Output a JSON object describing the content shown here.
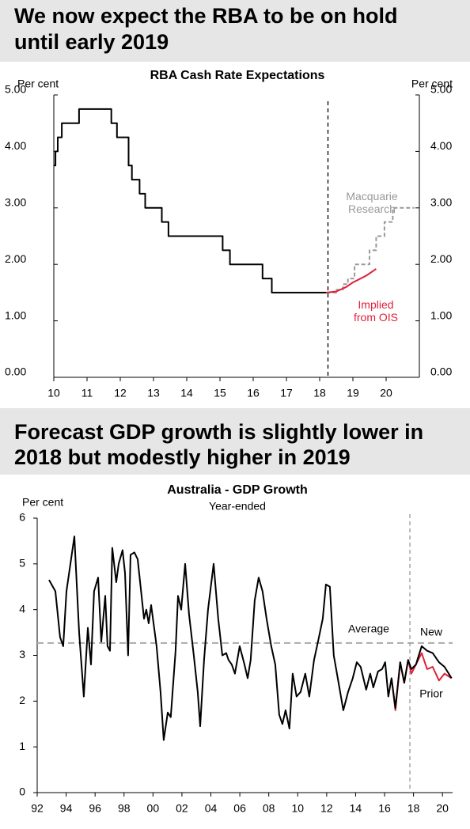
{
  "chart_data": [
    {
      "type": "line",
      "headline": [
        "We now expect the RBA to be on hold",
        "until early 2019"
      ],
      "title": "RBA Cash Rate Expectations",
      "ylabel": "Per cent",
      "y2label": "Per cent",
      "xlim": [
        10,
        21
      ],
      "xticks": [
        10,
        11,
        12,
        13,
        14,
        15,
        16,
        17,
        18,
        19,
        20
      ],
      "ylim": [
        0,
        5
      ],
      "yticks": [
        {
          "value": 0,
          "label": "0.00"
        },
        {
          "value": 1,
          "label": "1.00"
        },
        {
          "value": 2,
          "label": "2.00"
        },
        {
          "value": 3,
          "label": "3.00"
        },
        {
          "value": 4,
          "label": "4.00"
        },
        {
          "value": 5,
          "label": "5.00"
        }
      ],
      "y2lim": [
        0,
        5
      ],
      "y2ticks": [
        {
          "value": 0,
          "label": "0.00"
        },
        {
          "value": 1,
          "label": "1.00"
        },
        {
          "value": 2,
          "label": "2.00"
        },
        {
          "value": 3,
          "label": "3.00"
        },
        {
          "value": 4,
          "label": "4.00"
        },
        {
          "value": 5,
          "label": "5.00"
        }
      ],
      "forecast_start": 18.25,
      "series": [
        {
          "color": "#000000",
          "style": "solid",
          "x": [
            10.0,
            10.05,
            10.05,
            10.12,
            10.12,
            10.24,
            10.24,
            10.76,
            10.76,
            11.73,
            11.73,
            11.9,
            11.9,
            12.25,
            12.25,
            12.35,
            12.35,
            12.58,
            12.58,
            12.75,
            12.75,
            13.25,
            13.25,
            13.45,
            13.45,
            15.08,
            15.08,
            15.3,
            15.3,
            16.28,
            16.28,
            16.56,
            16.56,
            18.2
          ],
          "values": [
            3.75,
            3.75,
            4.0,
            4.0,
            4.25,
            4.25,
            4.5,
            4.5,
            4.75,
            4.75,
            4.5,
            4.5,
            4.25,
            4.25,
            3.75,
            3.75,
            3.5,
            3.5,
            3.25,
            3.25,
            3.0,
            3.0,
            2.75,
            2.75,
            2.5,
            2.5,
            2.25,
            2.25,
            2.0,
            2.0,
            1.75,
            1.75,
            1.5,
            1.5
          ]
        },
        {
          "name": "Macquarie Research",
          "color": "#999999",
          "style": "dashed",
          "x": [
            18.2,
            18.5,
            18.5,
            18.7,
            18.7,
            18.85,
            18.85,
            19.05,
            19.05,
            19.5,
            19.5,
            19.7,
            19.7,
            19.95,
            19.95,
            20.2,
            20.2,
            20.85
          ],
          "values": [
            1.5,
            1.5,
            1.55,
            1.55,
            1.65,
            1.65,
            1.75,
            1.75,
            2.0,
            2.0,
            2.25,
            2.25,
            2.5,
            2.5,
            2.75,
            2.75,
            3.0,
            3.0
          ]
        },
        {
          "name": "Implied from OIS",
          "color": "#e0203a",
          "style": "solid",
          "x": [
            18.2,
            18.5,
            18.8,
            19.0,
            19.2,
            19.4,
            19.7
          ],
          "values": [
            1.5,
            1.52,
            1.6,
            1.68,
            1.74,
            1.8,
            1.92
          ]
        }
      ]
    },
    {
      "type": "line",
      "headline": [
        "Forecast GDP growth is slightly lower in",
        "2018 but modestly higher in 2019"
      ],
      "title": "Australia - GDP Growth",
      "subtitle": "Year-ended",
      "ylabel": "Per cent",
      "xlim": [
        1992,
        2020.7
      ],
      "xticks": [
        {
          "value": 1992,
          "label": "92"
        },
        {
          "value": 1994,
          "label": "94"
        },
        {
          "value": 1996,
          "label": "96"
        },
        {
          "value": 1998,
          "label": "98"
        },
        {
          "value": 2000,
          "label": "00"
        },
        {
          "value": 2002,
          "label": "02"
        },
        {
          "value": 2004,
          "label": "04"
        },
        {
          "value": 2006,
          "label": "06"
        },
        {
          "value": 2008,
          "label": "08"
        },
        {
          "value": 2010,
          "label": "10"
        },
        {
          "value": 2012,
          "label": "12"
        },
        {
          "value": 2014,
          "label": "14"
        },
        {
          "value": 2016,
          "label": "16"
        },
        {
          "value": 2018,
          "label": "18"
        },
        {
          "value": 2020,
          "label": "20"
        }
      ],
      "ylim": [
        0,
        6
      ],
      "yticks": [
        0,
        1,
        2,
        3,
        4,
        5,
        6
      ],
      "average": {
        "label": "Average",
        "value": 3.27
      },
      "forecast_start": 2017.75,
      "series": [
        {
          "name": "Prior",
          "color": "#e0203a",
          "style": "solid",
          "x": [
            2016.48,
            2016.75,
            2017.08,
            2017.36,
            2017.63,
            2017.85,
            2018.17,
            2018.56,
            2018.94,
            2019.32,
            2019.76,
            2020.14,
            2020.63
          ],
          "values": [
            2.5,
            1.8,
            2.85,
            2.4,
            2.9,
            2.6,
            2.8,
            3.05,
            2.7,
            2.75,
            2.45,
            2.6,
            2.5
          ]
        },
        {
          "name": "New",
          "color": "#000000",
          "style": "solid",
          "x": [
            1992.82,
            1993.26,
            1993.58,
            1993.8,
            1994.02,
            1994.57,
            1994.9,
            1995.22,
            1995.5,
            1995.72,
            1995.93,
            1996.21,
            1996.43,
            1996.7,
            1996.86,
            1997.03,
            1997.19,
            1997.46,
            1997.63,
            1997.9,
            1998.07,
            1998.28,
            1998.45,
            1998.72,
            1998.94,
            1999.38,
            1999.54,
            1999.7,
            1999.87,
            2000.25,
            2000.52,
            2000.74,
            2001.02,
            2001.23,
            2001.56,
            2001.73,
            2001.95,
            2002.22,
            2002.49,
            2002.82,
            2003.09,
            2003.26,
            2003.53,
            2003.8,
            2004.19,
            2004.51,
            2004.79,
            2005.06,
            2005.22,
            2005.44,
            2005.66,
            2005.99,
            2006.32,
            2006.54,
            2006.75,
            2007.03,
            2007.3,
            2007.57,
            2007.85,
            2008.17,
            2008.45,
            2008.72,
            2008.94,
            2009.16,
            2009.43,
            2009.65,
            2009.92,
            2010.2,
            2010.52,
            2010.8,
            2011.13,
            2011.4,
            2011.73,
            2011.95,
            2012.22,
            2012.49,
            2012.82,
            2013.15,
            2013.48,
            2013.8,
            2014.08,
            2014.35,
            2014.73,
            2015.01,
            2015.22,
            2015.55,
            2015.83,
            2016.04,
            2016.26,
            2016.48,
            2016.75,
            2017.08,
            2017.36,
            2017.63,
            2017.85,
            2018.17,
            2018.56,
            2018.94,
            2019.32,
            2019.76,
            2020.14,
            2020.63
          ],
          "values": [
            4.65,
            4.4,
            3.4,
            3.2,
            4.4,
            5.6,
            3.5,
            2.1,
            3.6,
            2.8,
            4.4,
            4.7,
            3.3,
            4.3,
            3.2,
            3.1,
            5.35,
            4.6,
            5.0,
            5.3,
            4.8,
            3.0,
            5.2,
            5.25,
            5.1,
            3.8,
            4.0,
            3.7,
            4.1,
            3.2,
            2.2,
            1.15,
            1.75,
            1.65,
            3.1,
            4.3,
            4.0,
            5.0,
            3.9,
            3.0,
            2.2,
            1.45,
            2.9,
            4.0,
            5.0,
            3.8,
            3.0,
            3.05,
            2.9,
            2.8,
            2.6,
            3.2,
            2.8,
            2.5,
            2.9,
            4.2,
            4.7,
            4.4,
            3.8,
            3.2,
            2.8,
            1.7,
            1.5,
            1.8,
            1.4,
            2.6,
            2.1,
            2.2,
            2.6,
            2.1,
            2.9,
            3.3,
            3.8,
            4.55,
            4.5,
            3.0,
            2.4,
            1.8,
            2.2,
            2.5,
            2.85,
            2.75,
            2.25,
            2.6,
            2.3,
            2.65,
            2.7,
            2.85,
            2.1,
            2.5,
            1.85,
            2.85,
            2.4,
            2.9,
            2.7,
            2.8,
            3.2,
            3.1,
            3.05,
            2.85,
            2.75,
            2.5
          ]
        }
      ]
    }
  ]
}
